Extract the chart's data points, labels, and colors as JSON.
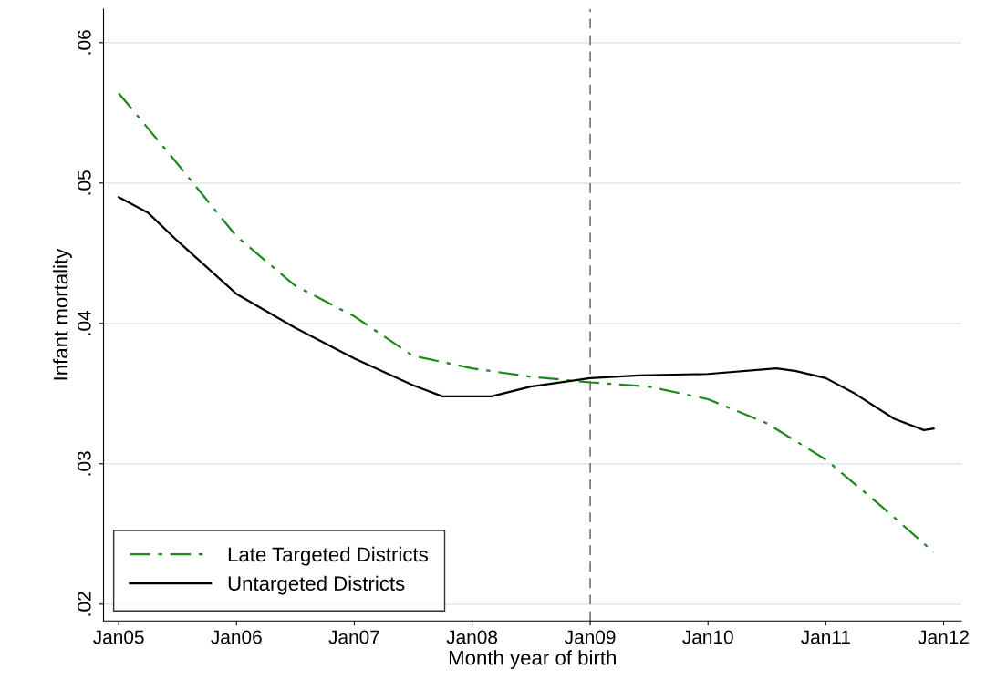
{
  "chart_data": {
    "type": "line",
    "xlabel": "Month year of birth",
    "ylabel": "Infant mortality",
    "xlim": [
      "2004-11-15",
      "2012-02-25"
    ],
    "ylim": [
      0.0188,
      0.0624
    ],
    "xticks": [
      {
        "value": "2005-01",
        "label": "Jan05"
      },
      {
        "value": "2006-01",
        "label": "Jan06"
      },
      {
        "value": "2007-01",
        "label": "Jan07"
      },
      {
        "value": "2008-01",
        "label": "Jan08"
      },
      {
        "value": "2009-01",
        "label": "Jan09"
      },
      {
        "value": "2010-01",
        "label": "Jan10"
      },
      {
        "value": "2011-01",
        "label": "Jan11"
      },
      {
        "value": "2012-01",
        "label": "Jan12"
      }
    ],
    "yticks": [
      {
        "value": 0.02,
        "label": ".02"
      },
      {
        "value": 0.03,
        "label": ".03"
      },
      {
        "value": 0.04,
        "label": ".04"
      },
      {
        "value": 0.05,
        "label": ".05"
      },
      {
        "value": 0.06,
        "label": ".06"
      }
    ],
    "grid": "y",
    "legend": "bottom left",
    "ref_lines": [
      {
        "axis": "x",
        "value": "2009-01",
        "color": "#808080",
        "line_style": "dashed"
      }
    ],
    "series": [
      {
        "name": "Late Targeted Districts",
        "color": "#1a8a1a",
        "line_style": "dashdot",
        "x": [
          "2005-01",
          "2005-07",
          "2006-01",
          "2006-07",
          "2007-01",
          "2007-07",
          "2008-01",
          "2008-07",
          "2009-01",
          "2009-07",
          "2010-01",
          "2010-07",
          "2011-01",
          "2011-07",
          "2011-12"
        ],
        "values": [
          0.0564,
          0.0514,
          0.0462,
          0.0427,
          0.0405,
          0.0377,
          0.0368,
          0.0362,
          0.0358,
          0.0355,
          0.0346,
          0.0329,
          0.0303,
          0.0268,
          0.0237
        ]
      },
      {
        "name": "Untargeted Districts",
        "color": "#000000",
        "line_style": "solid",
        "x": [
          "2005-01",
          "2005-04",
          "2005-07",
          "2006-01",
          "2006-07",
          "2007-01",
          "2007-07",
          "2007-10",
          "2008-03",
          "2008-07",
          "2009-01",
          "2009-06",
          "2010-01",
          "2010-08",
          "2010-10",
          "2011-01",
          "2011-04",
          "2011-08",
          "2011-11",
          "2011-12"
        ],
        "values": [
          0.049,
          0.0479,
          0.0459,
          0.0421,
          0.0397,
          0.0375,
          0.0356,
          0.0348,
          0.0348,
          0.0355,
          0.0361,
          0.0363,
          0.0364,
          0.0368,
          0.0366,
          0.0361,
          0.035,
          0.0332,
          0.0324,
          0.0325
        ]
      }
    ]
  }
}
